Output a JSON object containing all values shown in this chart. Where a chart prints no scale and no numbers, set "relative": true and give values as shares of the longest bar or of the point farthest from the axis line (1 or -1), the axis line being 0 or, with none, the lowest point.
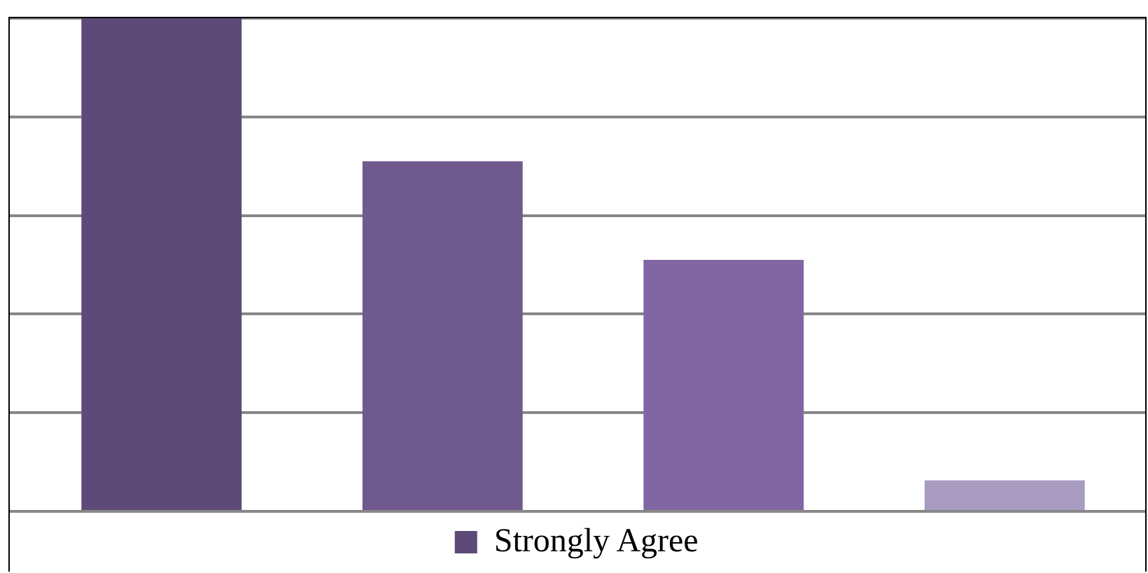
{
  "chart_data": {
    "type": "bar",
    "relative": true,
    "categories": [
      null,
      null,
      null,
      null
    ],
    "series": [
      {
        "name": "Strongly Agree",
        "color": "#5e4a78",
        "colors": [
          "#5e4a78",
          "#70598e",
          "#8066a3",
          "#a99ac0"
        ],
        "values": [
          1,
          0.71,
          0.51,
          0.063
        ]
      }
    ],
    "grid": "y",
    "legend": "bottom"
  }
}
